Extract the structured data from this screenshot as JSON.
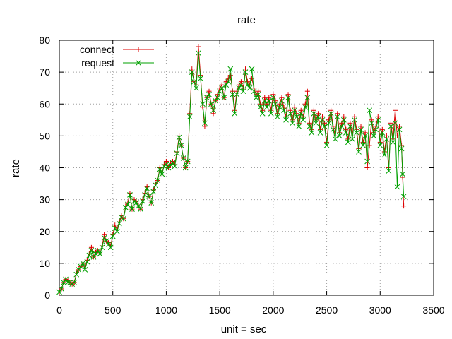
{
  "chart_data": {
    "type": "line",
    "title": "rate",
    "xlabel": "unit = sec",
    "ylabel": "rate",
    "xlim": [
      0,
      3500
    ],
    "ylim": [
      0,
      80
    ],
    "x_ticks": [
      0,
      500,
      1000,
      1500,
      2000,
      2500,
      3000,
      3500
    ],
    "y_ticks": [
      0,
      10,
      20,
      30,
      40,
      50,
      60,
      70,
      80
    ],
    "grid": true,
    "legend_position": "top-left",
    "series": [
      {
        "name": "connect",
        "color": "#dd0000",
        "marker": "plus",
        "values": [
          [
            0,
            1
          ],
          [
            20,
            2
          ],
          [
            40,
            4
          ],
          [
            60,
            5
          ],
          [
            80,
            4.5
          ],
          [
            100,
            4
          ],
          [
            120,
            3.5
          ],
          [
            140,
            4
          ],
          [
            160,
            7
          ],
          [
            180,
            8
          ],
          [
            200,
            9
          ],
          [
            220,
            10
          ],
          [
            240,
            8.5
          ],
          [
            260,
            11
          ],
          [
            280,
            13
          ],
          [
            300,
            15
          ],
          [
            320,
            12
          ],
          [
            340,
            13.5
          ],
          [
            360,
            14
          ],
          [
            380,
            13
          ],
          [
            400,
            15.5
          ],
          [
            420,
            19
          ],
          [
            440,
            17
          ],
          [
            460,
            16.5
          ],
          [
            480,
            15.5
          ],
          [
            500,
            19
          ],
          [
            520,
            22
          ],
          [
            540,
            20.5
          ],
          [
            560,
            23
          ],
          [
            580,
            25
          ],
          [
            600,
            24
          ],
          [
            620,
            28
          ],
          [
            640,
            29
          ],
          [
            660,
            32
          ],
          [
            680,
            27
          ],
          [
            700,
            30
          ],
          [
            720,
            29.5
          ],
          [
            740,
            28
          ],
          [
            760,
            27
          ],
          [
            780,
            30
          ],
          [
            800,
            32
          ],
          [
            820,
            34
          ],
          [
            840,
            31
          ],
          [
            860,
            29
          ],
          [
            880,
            33
          ],
          [
            900,
            35
          ],
          [
            920,
            36
          ],
          [
            940,
            40
          ],
          [
            960,
            38
          ],
          [
            980,
            41
          ],
          [
            1000,
            42
          ],
          [
            1020,
            40
          ],
          [
            1040,
            41
          ],
          [
            1060,
            42
          ],
          [
            1080,
            41
          ],
          [
            1100,
            45
          ],
          [
            1120,
            50
          ],
          [
            1140,
            47
          ],
          [
            1160,
            43
          ],
          [
            1180,
            40
          ],
          [
            1200,
            42
          ],
          [
            1220,
            57
          ],
          [
            1240,
            71
          ],
          [
            1260,
            67
          ],
          [
            1280,
            66
          ],
          [
            1300,
            78
          ],
          [
            1320,
            69
          ],
          [
            1340,
            59
          ],
          [
            1360,
            53
          ],
          [
            1380,
            62
          ],
          [
            1400,
            64
          ],
          [
            1420,
            60
          ],
          [
            1440,
            57
          ],
          [
            1460,
            61
          ],
          [
            1480,
            63
          ],
          [
            1500,
            65
          ],
          [
            1520,
            66
          ],
          [
            1540,
            62
          ],
          [
            1560,
            67
          ],
          [
            1580,
            68
          ],
          [
            1600,
            69
          ],
          [
            1620,
            64
          ],
          [
            1640,
            58
          ],
          [
            1660,
            64
          ],
          [
            1680,
            66
          ],
          [
            1700,
            67
          ],
          [
            1720,
            65
          ],
          [
            1740,
            71
          ],
          [
            1760,
            67
          ],
          [
            1780,
            66
          ],
          [
            1800,
            68
          ],
          [
            1820,
            65
          ],
          [
            1840,
            63
          ],
          [
            1860,
            64
          ],
          [
            1880,
            60
          ],
          [
            1900,
            58
          ],
          [
            1920,
            62
          ],
          [
            1940,
            60
          ],
          [
            1960,
            62
          ],
          [
            1980,
            58
          ],
          [
            2000,
            63
          ],
          [
            2020,
            61
          ],
          [
            2040,
            57
          ],
          [
            2060,
            60
          ],
          [
            2080,
            62
          ],
          [
            2100,
            59
          ],
          [
            2120,
            56
          ],
          [
            2140,
            63
          ],
          [
            2160,
            58
          ],
          [
            2180,
            55
          ],
          [
            2200,
            59
          ],
          [
            2220,
            57
          ],
          [
            2240,
            54
          ],
          [
            2260,
            58
          ],
          [
            2280,
            56
          ],
          [
            2300,
            60
          ],
          [
            2320,
            64
          ],
          [
            2340,
            54
          ],
          [
            2360,
            52
          ],
          [
            2380,
            58
          ],
          [
            2400,
            55
          ],
          [
            2420,
            57
          ],
          [
            2440,
            52
          ],
          [
            2460,
            56
          ],
          [
            2480,
            54
          ],
          [
            2500,
            48
          ],
          [
            2520,
            55
          ],
          [
            2540,
            58
          ],
          [
            2560,
            53
          ],
          [
            2580,
            50
          ],
          [
            2600,
            57
          ],
          [
            2620,
            51
          ],
          [
            2640,
            54
          ],
          [
            2660,
            56
          ],
          [
            2680,
            52
          ],
          [
            2700,
            49
          ],
          [
            2720,
            54
          ],
          [
            2740,
            50
          ],
          [
            2760,
            56
          ],
          [
            2780,
            52
          ],
          [
            2800,
            46
          ],
          [
            2820,
            53
          ],
          [
            2840,
            48
          ],
          [
            2860,
            51
          ],
          [
            2880,
            40
          ],
          [
            2900,
            47
          ],
          [
            2920,
            55
          ],
          [
            2940,
            51
          ],
          [
            2960,
            53
          ],
          [
            2980,
            56
          ],
          [
            3000,
            48
          ],
          [
            3020,
            52
          ],
          [
            3040,
            45
          ],
          [
            3060,
            50
          ],
          [
            3080,
            40
          ],
          [
            3100,
            54
          ],
          [
            3120,
            49
          ],
          [
            3140,
            58
          ],
          [
            3160,
            50
          ],
          [
            3180,
            53
          ],
          [
            3200,
            47
          ],
          [
            3210,
            37
          ],
          [
            3220,
            28
          ]
        ]
      },
      {
        "name": "request",
        "color": "#00a000",
        "marker": "cross",
        "values": [
          [
            0,
            1
          ],
          [
            20,
            2
          ],
          [
            40,
            4
          ],
          [
            60,
            5
          ],
          [
            80,
            4
          ],
          [
            100,
            4
          ],
          [
            120,
            3.5
          ],
          [
            140,
            4
          ],
          [
            160,
            6.5
          ],
          [
            180,
            8
          ],
          [
            200,
            9
          ],
          [
            220,
            10
          ],
          [
            240,
            8
          ],
          [
            260,
            10.5
          ],
          [
            280,
            12.5
          ],
          [
            300,
            14
          ],
          [
            320,
            12
          ],
          [
            340,
            13
          ],
          [
            360,
            14
          ],
          [
            380,
            13
          ],
          [
            400,
            15
          ],
          [
            420,
            18
          ],
          [
            440,
            17
          ],
          [
            460,
            16
          ],
          [
            480,
            15
          ],
          [
            500,
            18.5
          ],
          [
            520,
            21
          ],
          [
            540,
            20
          ],
          [
            560,
            22.5
          ],
          [
            580,
            24.5
          ],
          [
            600,
            24
          ],
          [
            620,
            27.5
          ],
          [
            640,
            28.5
          ],
          [
            660,
            31.5
          ],
          [
            680,
            27
          ],
          [
            700,
            29.5
          ],
          [
            720,
            29
          ],
          [
            740,
            28
          ],
          [
            760,
            27
          ],
          [
            780,
            29.5
          ],
          [
            800,
            31.5
          ],
          [
            820,
            33.5
          ],
          [
            840,
            31
          ],
          [
            860,
            29
          ],
          [
            880,
            32.5
          ],
          [
            900,
            34.5
          ],
          [
            920,
            36
          ],
          [
            940,
            39.5
          ],
          [
            960,
            38
          ],
          [
            980,
            40.5
          ],
          [
            1000,
            41
          ],
          [
            1020,
            40
          ],
          [
            1040,
            41
          ],
          [
            1060,
            41.5
          ],
          [
            1080,
            40.5
          ],
          [
            1100,
            44.5
          ],
          [
            1120,
            49.5
          ],
          [
            1140,
            47
          ],
          [
            1160,
            43
          ],
          [
            1180,
            40
          ],
          [
            1200,
            42
          ],
          [
            1220,
            56
          ],
          [
            1240,
            70
          ],
          [
            1260,
            67
          ],
          [
            1280,
            65
          ],
          [
            1300,
            76
          ],
          [
            1320,
            68
          ],
          [
            1340,
            60
          ],
          [
            1360,
            54
          ],
          [
            1380,
            62
          ],
          [
            1400,
            63
          ],
          [
            1420,
            60
          ],
          [
            1440,
            58
          ],
          [
            1460,
            61
          ],
          [
            1480,
            62
          ],
          [
            1500,
            64
          ],
          [
            1520,
            65
          ],
          [
            1540,
            62
          ],
          [
            1560,
            66
          ],
          [
            1580,
            67
          ],
          [
            1600,
            71
          ],
          [
            1620,
            63
          ],
          [
            1640,
            57
          ],
          [
            1660,
            63
          ],
          [
            1680,
            65
          ],
          [
            1700,
            66
          ],
          [
            1720,
            64
          ],
          [
            1740,
            70
          ],
          [
            1760,
            66
          ],
          [
            1780,
            65
          ],
          [
            1800,
            71
          ],
          [
            1820,
            64
          ],
          [
            1840,
            62
          ],
          [
            1860,
            63
          ],
          [
            1880,
            59
          ],
          [
            1900,
            57
          ],
          [
            1920,
            61
          ],
          [
            1940,
            59
          ],
          [
            1960,
            61
          ],
          [
            1980,
            57
          ],
          [
            2000,
            62
          ],
          [
            2020,
            60
          ],
          [
            2040,
            56
          ],
          [
            2060,
            59
          ],
          [
            2080,
            61
          ],
          [
            2100,
            58
          ],
          [
            2120,
            55
          ],
          [
            2140,
            62
          ],
          [
            2160,
            57
          ],
          [
            2180,
            54
          ],
          [
            2200,
            58
          ],
          [
            2220,
            56
          ],
          [
            2240,
            53
          ],
          [
            2260,
            57
          ],
          [
            2280,
            55
          ],
          [
            2300,
            59
          ],
          [
            2320,
            62
          ],
          [
            2340,
            53
          ],
          [
            2360,
            51
          ],
          [
            2380,
            57
          ],
          [
            2400,
            54
          ],
          [
            2420,
            56
          ],
          [
            2440,
            51
          ],
          [
            2460,
            55
          ],
          [
            2480,
            53
          ],
          [
            2500,
            47
          ],
          [
            2520,
            54
          ],
          [
            2540,
            57
          ],
          [
            2560,
            52
          ],
          [
            2580,
            49
          ],
          [
            2600,
            56
          ],
          [
            2620,
            50
          ],
          [
            2640,
            53
          ],
          [
            2660,
            55
          ],
          [
            2680,
            51
          ],
          [
            2700,
            48
          ],
          [
            2720,
            53
          ],
          [
            2740,
            49
          ],
          [
            2760,
            55
          ],
          [
            2780,
            51
          ],
          [
            2800,
            45
          ],
          [
            2820,
            52
          ],
          [
            2840,
            47
          ],
          [
            2860,
            50
          ],
          [
            2880,
            42
          ],
          [
            2900,
            58
          ],
          [
            2920,
            54
          ],
          [
            2940,
            50
          ],
          [
            2960,
            52
          ],
          [
            2980,
            55
          ],
          [
            3000,
            47
          ],
          [
            3020,
            51
          ],
          [
            3040,
            44
          ],
          [
            3060,
            49
          ],
          [
            3080,
            39
          ],
          [
            3100,
            53
          ],
          [
            3120,
            48
          ],
          [
            3140,
            54
          ],
          [
            3160,
            34
          ],
          [
            3180,
            52
          ],
          [
            3200,
            46
          ],
          [
            3210,
            38
          ],
          [
            3220,
            31
          ]
        ]
      }
    ]
  }
}
